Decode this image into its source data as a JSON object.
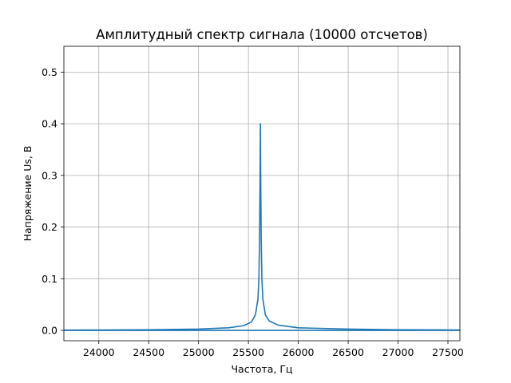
{
  "chart_data": {
    "type": "line",
    "title": "Амплитудный спектр сигнала (10000 отсчетов)",
    "xlabel": "Частота, Гц",
    "ylabel": "Напряжение Us, В",
    "xlim": [
      23650,
      27620
    ],
    "ylim": [
      -0.02,
      0.55
    ],
    "xticks": [
      24000,
      24500,
      25000,
      25500,
      26000,
      26500,
      27000,
      27500
    ],
    "xtick_labels": [
      "24000",
      "24500",
      "25000",
      "25500",
      "26000",
      "26500",
      "27000",
      "27500"
    ],
    "yticks": [
      0.0,
      0.1,
      0.2,
      0.3,
      0.4,
      0.5
    ],
    "ytick_labels": [
      "0.0",
      "0.1",
      "0.2",
      "0.3",
      "0.4",
      "0.5"
    ],
    "grid": true,
    "series": [
      {
        "color": "#1f77b4",
        "peak_frequency": 25620,
        "peak_value": 0.4,
        "x": [
          23650,
          24000,
          24500,
          25000,
          25300,
          25450,
          25530,
          25570,
          25595,
          25605,
          25612,
          25617,
          25620,
          25623,
          25628,
          25635,
          25645,
          25670,
          25710,
          25800,
          26000,
          26500,
          27000,
          27620
        ],
        "y": [
          0.0005,
          0.0007,
          0.0012,
          0.0025,
          0.005,
          0.009,
          0.016,
          0.03,
          0.06,
          0.1,
          0.18,
          0.3,
          0.4,
          0.3,
          0.18,
          0.1,
          0.06,
          0.03,
          0.018,
          0.01,
          0.005,
          0.0025,
          0.0012,
          0.0007
        ]
      }
    ],
    "baseline": {
      "color": "#1f77b4",
      "x": [
        23650,
        27620
      ],
      "y": [
        0.0,
        0.0
      ]
    }
  }
}
